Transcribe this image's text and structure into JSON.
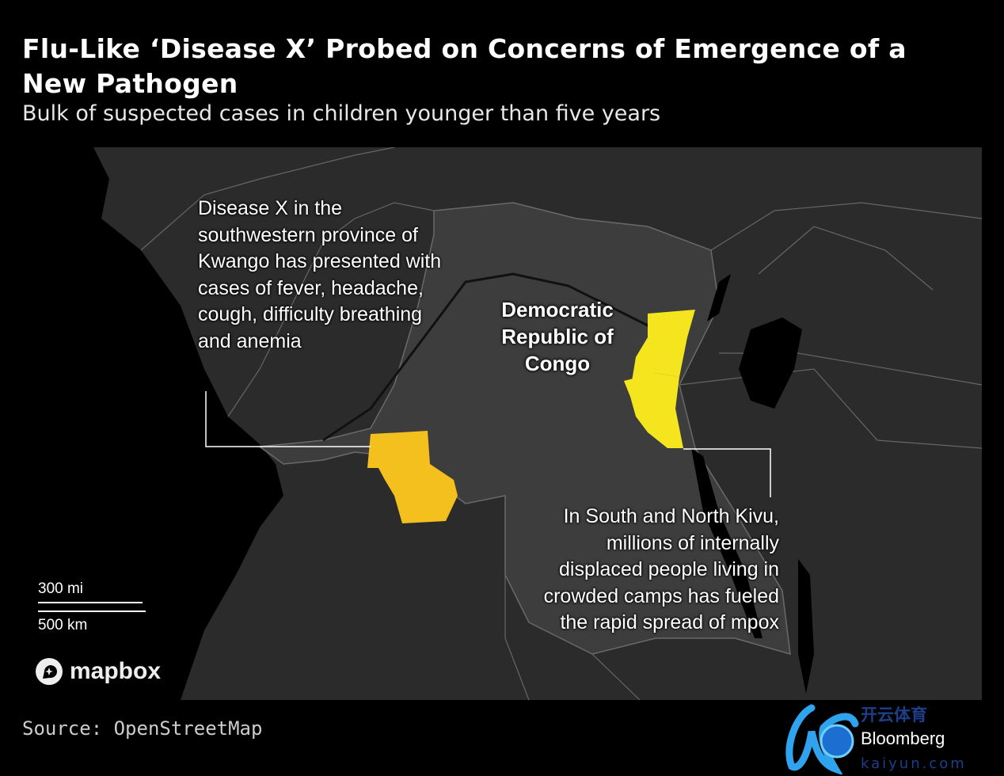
{
  "header": {
    "title": "Flu-Like ‘Disease X’ Probed on Concerns of Emergence of a New Pathogen",
    "subtitle": "Bulk of suspected cases in children younger than five years"
  },
  "map": {
    "country_label": "Democratic Republic of Congo",
    "annotations": [
      {
        "id": "kwango",
        "text": "Disease X in the southwestern province of Kwango has presented with cases of fever, headache, cough, difficulty breathing and anemia"
      },
      {
        "id": "kivu",
        "text": "In South and North Kivu, millions of internally displaced people living in crowded camps has fueled the rapid spread of mpox"
      }
    ],
    "highlight_colors": {
      "kwango": "#f4c01e",
      "kivu": "#f5e51f"
    },
    "colors": {
      "ocean": "#000000",
      "land": "#2b2b2b",
      "drc": "#3d3d3d",
      "borders": "#6a6a6a"
    },
    "scale": {
      "miles": "300 mi",
      "km": "500 km"
    },
    "attribution": "mapbox"
  },
  "footer": {
    "source": "Source: OpenStreetMap"
  },
  "watermark": {
    "text": "Bloomberg 开云体育 kaiyun.com"
  }
}
